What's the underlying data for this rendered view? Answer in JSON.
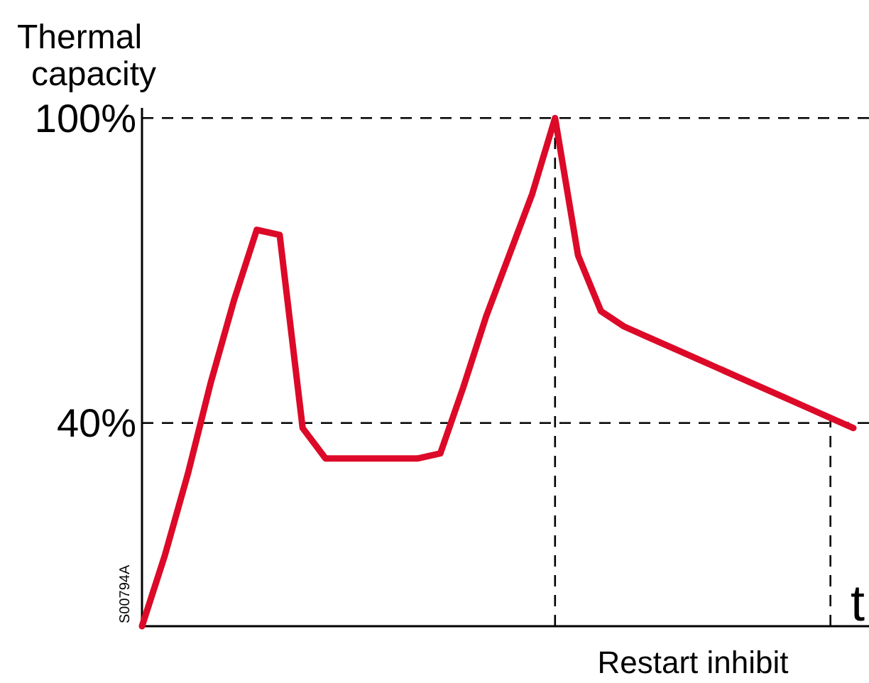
{
  "chart_data": {
    "type": "line",
    "ylabel": "Thermal capacity",
    "xlabel": "t",
    "categories": [
      null,
      null,
      null,
      null,
      null,
      null,
      null,
      null,
      null,
      null,
      null,
      null,
      null,
      null,
      null,
      null,
      null,
      null,
      null,
      null,
      null,
      null,
      null,
      null,
      null,
      null,
      null,
      null,
      null,
      null,
      null,
      null
    ],
    "series": [
      {
        "color": "#dc0a28",
        "values": [
          0,
          14,
          30,
          48,
          64,
          78,
          77,
          39,
          33,
          33,
          33,
          33,
          33,
          34,
          47,
          61,
          73,
          85,
          100,
          73,
          62,
          59,
          57,
          55,
          53,
          51,
          49,
          47,
          45,
          43,
          41,
          39
        ]
      }
    ],
    "ylim": [
      0,
      102
    ],
    "yticks": [
      {
        "value": 40,
        "label": "40%"
      },
      {
        "value": 100,
        "label": "100%"
      }
    ],
    "tick_labels": "y",
    "grid": "y",
    "line_style": "solid",
    "marker": "none",
    "annotations": [
      "Restart inhibit",
      "S00794A"
    ]
  }
}
